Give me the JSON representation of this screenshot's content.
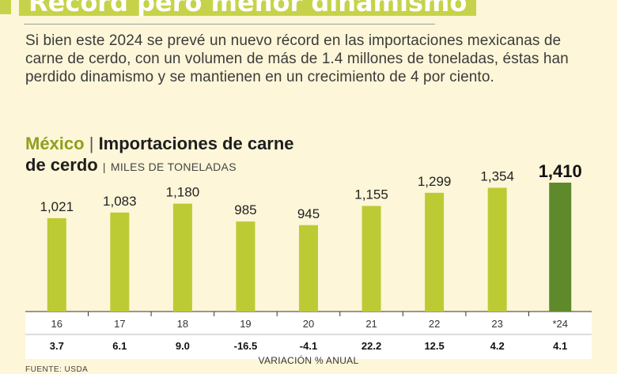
{
  "headline": "Récord pero menor dinamismo",
  "lede": "Si bien este 2024 se prevé un nuevo récord en las importaciones mexicanas de carne de cerdo, con un volumen de más de 1.4 millones de toneladas, éstas han perdido dinamismo y se mantienen en un crecimiento de 4 por ciento.",
  "chart_title": {
    "country": "México",
    "separator": "|",
    "main_line1": "Importaciones de carne",
    "main_line2": "de cerdo",
    "units": "MILES DE TONELADAS"
  },
  "variation_caption": "VARIACIÓN % ANUAL",
  "source": "FUENTE: USDA",
  "colors": {
    "bar": "#bccb34",
    "highlight_bar": "#5e8a2c",
    "headline_bg": "#c6d34a",
    "background": "#fdf6d8"
  },
  "chart_data": {
    "type": "bar",
    "title": "Importaciones de carne de cerdo",
    "ylabel": "MILES DE TONELADAS",
    "categories": [
      "16",
      "17",
      "18",
      "19",
      "20",
      "21",
      "22",
      "23",
      "*24"
    ],
    "values": [
      1021,
      1083,
      1180,
      985,
      945,
      1155,
      1299,
      1354,
      1410
    ],
    "value_labels": [
      "1,021",
      "1,083",
      "1,180",
      "985",
      "945",
      "1,155",
      "1,299",
      "1,354",
      "1,410"
    ],
    "variation_labels": [
      "3.7",
      "6.1",
      "9.0",
      "-16.5",
      "-4.1",
      "22.2",
      "12.5",
      "4.2",
      "4.1"
    ],
    "highlight_index": 8,
    "ylim": [
      0,
      1410
    ]
  }
}
